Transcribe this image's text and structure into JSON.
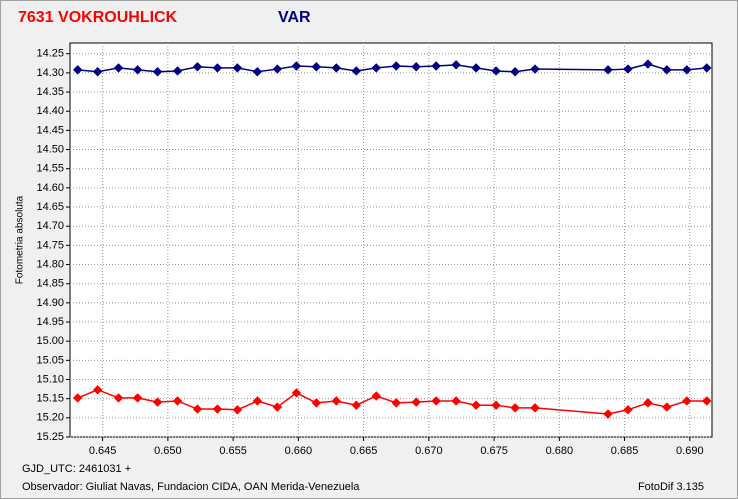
{
  "chart_data": {
    "type": "line",
    "y_label": "Fotometria absoluta",
    "x_label": "GJD_UTC: 2461031 +",
    "footer": "Observador: Giuliat Navas, Fundacion CIDA, OAN  Merida-Venezuela",
    "software": "FotoDif 3.135",
    "x": [
      0.64309,
      0.64462,
      0.64622,
      0.64768,
      0.64921,
      0.65074,
      0.65227,
      0.6538,
      0.65533,
      0.65686,
      0.65839,
      0.65985,
      0.66138,
      0.66291,
      0.66444,
      0.66597,
      0.6675,
      0.66903,
      0.67056,
      0.67209,
      0.67362,
      0.67515,
      0.67661,
      0.67814,
      0.68373,
      0.68526,
      0.68679,
      0.68824,
      0.68977,
      0.6913
    ],
    "series": [
      {
        "name": "7631 VOKROUHLICK",
        "color": "#ff0000",
        "values": [
          15.148,
          15.127,
          15.148,
          15.148,
          15.159,
          15.156,
          15.177,
          15.177,
          15.179,
          15.156,
          15.172,
          15.135,
          15.161,
          15.156,
          15.167,
          15.143,
          15.161,
          15.159,
          15.156,
          15.156,
          15.167,
          15.167,
          15.174,
          15.174,
          15.19,
          15.179,
          15.161,
          15.172,
          15.156,
          15.156
        ]
      },
      {
        "name": "VAR",
        "color": "#000080",
        "values": [
          14.292,
          14.297,
          14.287,
          14.292,
          14.297,
          14.295,
          14.284,
          14.287,
          14.287,
          14.297,
          14.29,
          14.282,
          14.284,
          14.287,
          14.295,
          14.287,
          14.282,
          14.284,
          14.282,
          14.279,
          14.287,
          14.295,
          14.297,
          14.29,
          14.292,
          14.29,
          14.277,
          14.292,
          14.292,
          14.287
        ]
      }
    ],
    "xlim": [
      0.6425,
      0.6917
    ],
    "xticks": [
      0.645,
      {
        "value": 0.65,
        "label": "0.650"
      },
      0.655,
      {
        "value": 0.66,
        "label": "0.660"
      },
      0.665,
      {
        "value": 0.67,
        "label": "0.670"
      },
      0.675,
      {
        "value": 0.68,
        "label": "0.680"
      },
      0.685,
      {
        "value": 0.69,
        "label": "0.690"
      }
    ],
    "ylim": [
      14.222,
      15.25
    ],
    "y_inverted": true,
    "yticks": [
      14.25,
      {
        "value": 14.3,
        "label": "14.30"
      },
      14.35,
      {
        "value": 14.4,
        "label": "14.40"
      },
      14.45,
      {
        "value": 14.5,
        "label": "14.50"
      },
      14.55,
      {
        "value": 14.6,
        "label": "14.60"
      },
      14.65,
      {
        "value": 14.7,
        "label": "14.70"
      },
      14.75,
      {
        "value": 14.8,
        "label": "14.80"
      },
      14.85,
      {
        "value": 14.9,
        "label": "14.90"
      },
      14.95,
      {
        "value": 15,
        "label": "15.00"
      },
      15.05,
      {
        "value": 15.1,
        "label": "15.10"
      },
      15.15,
      {
        "value": 15.2,
        "label": "15.20"
      },
      15.25
    ],
    "grid": true
  }
}
